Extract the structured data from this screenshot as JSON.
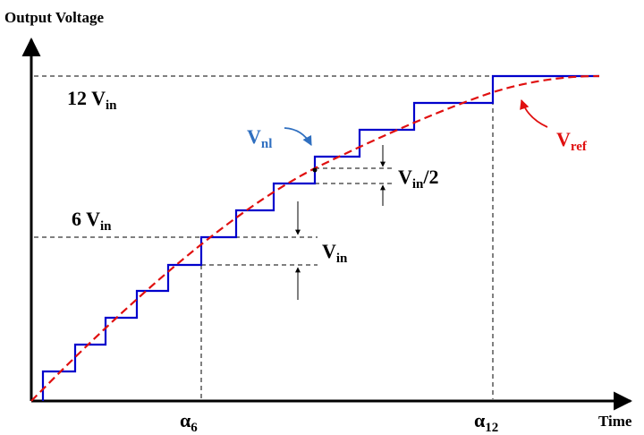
{
  "axes": {
    "y_label": "Output Voltage",
    "x_label": "Time"
  },
  "levels": {
    "level_12": {
      "num": "12 V",
      "sub": "in"
    },
    "level_6": {
      "num": "6 V",
      "sub": "in"
    }
  },
  "annotations": {
    "vnl": {
      "main": "V",
      "sub": "nl"
    },
    "vref": {
      "main": "V",
      "sub": "ref"
    },
    "step_full": {
      "main": "V",
      "sub": "in"
    },
    "step_half": {
      "main": "V",
      "sub": "in",
      "suffix": "/2"
    }
  },
  "time_marks": {
    "alpha6": {
      "main": "α",
      "sub": "6"
    },
    "alpha12": {
      "main": "α",
      "sub": "12"
    }
  },
  "colors": {
    "staircase": "#0000cc",
    "reference": "#e01010",
    "vnl_label": "#2f6fc0",
    "vref_label": "#e01010"
  }
}
